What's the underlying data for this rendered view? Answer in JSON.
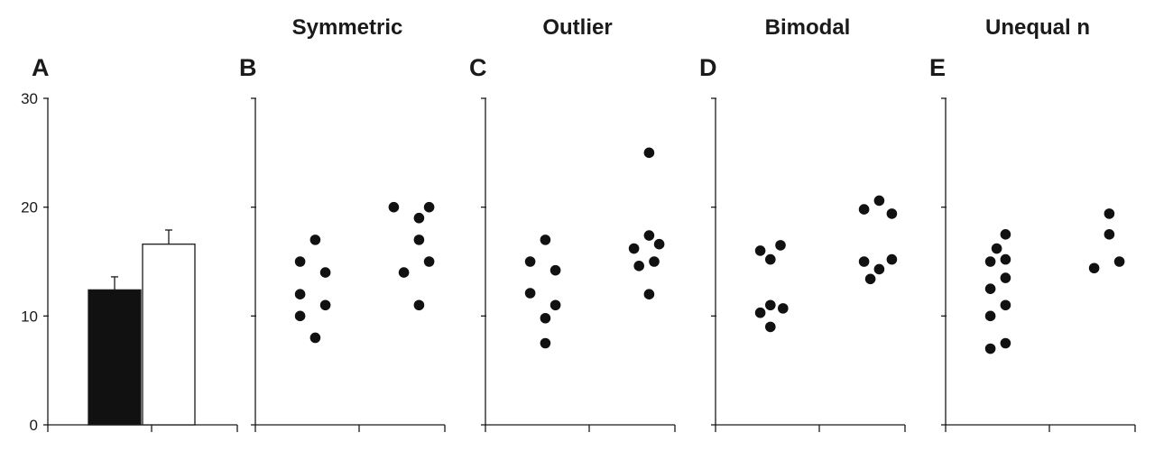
{
  "chart_data": {
    "y_axis": {
      "ticks": [
        "0",
        "10",
        "20",
        "30"
      ],
      "ylim": [
        0,
        30
      ]
    },
    "panels": [
      {
        "letter": "A",
        "title": "",
        "type": "bar",
        "bars": [
          {
            "value": 12.4,
            "error": 1.2,
            "fill": "#111111"
          },
          {
            "value": 16.6,
            "error": 1.3,
            "fill": "#ffffff"
          }
        ]
      },
      {
        "letter": "B",
        "title": "Symmetric",
        "type": "scatter",
        "groups": [
          {
            "points": [
              [
                -0.6,
                15
              ],
              [
                0.6,
                17
              ],
              [
                1.4,
                14
              ],
              [
                -0.6,
                12
              ],
              [
                1.4,
                11
              ],
              [
                -0.6,
                10
              ],
              [
                0.6,
                8
              ]
            ]
          },
          {
            "points": [
              [
                -1.4,
                20
              ],
              [
                0.6,
                19
              ],
              [
                1.4,
                20
              ],
              [
                0.6,
                17
              ],
              [
                -0.6,
                14
              ],
              [
                1.4,
                15
              ],
              [
                0.6,
                11
              ]
            ]
          }
        ]
      },
      {
        "letter": "C",
        "title": "Outlier",
        "type": "scatter",
        "groups": [
          {
            "points": [
              [
                -0.6,
                15
              ],
              [
                0.6,
                17
              ],
              [
                1.4,
                14.2
              ],
              [
                -0.6,
                12.1
              ],
              [
                1.4,
                11
              ],
              [
                0.6,
                9.8
              ],
              [
                0.6,
                7.5
              ]
            ]
          },
          {
            "points": [
              [
                -0.6,
                16.2
              ],
              [
                0.6,
                17.4
              ],
              [
                1.4,
                16.6
              ],
              [
                -0.2,
                14.6
              ],
              [
                1.0,
                15
              ],
              [
                0.6,
                12
              ],
              [
                0.6,
                25
              ]
            ]
          }
        ]
      },
      {
        "letter": "D",
        "title": "Bimodal",
        "type": "scatter",
        "groups": [
          {
            "points": [
              [
                -0.6,
                16
              ],
              [
                1.0,
                16.5
              ],
              [
                0.2,
                15.2
              ],
              [
                -0.6,
                10.3
              ],
              [
                0.2,
                11
              ],
              [
                1.2,
                10.7
              ],
              [
                0.2,
                9
              ]
            ]
          },
          {
            "points": [
              [
                -0.6,
                19.8
              ],
              [
                0.6,
                20.6
              ],
              [
                1.6,
                19.4
              ],
              [
                -0.6,
                15
              ],
              [
                0.6,
                14.3
              ],
              [
                1.6,
                15.2
              ],
              [
                -0.1,
                13.4
              ]
            ]
          }
        ]
      },
      {
        "letter": "E",
        "title": "Unequal n",
        "type": "scatter",
        "groups": [
          {
            "points": [
              [
                -0.6,
                15
              ],
              [
                -0.1,
                16.2
              ],
              [
                0.6,
                17.5
              ],
              [
                0.6,
                15.2
              ],
              [
                -0.6,
                12.5
              ],
              [
                0.6,
                13.5
              ],
              [
                0.6,
                11
              ],
              [
                -0.6,
                10
              ],
              [
                -0.6,
                7
              ],
              [
                0.6,
                7.5
              ]
            ]
          },
          {
            "points": [
              [
                0.6,
                19.4
              ],
              [
                0.6,
                17.5
              ],
              [
                -0.6,
                14.4
              ],
              [
                1.4,
                15
              ]
            ]
          }
        ]
      }
    ]
  }
}
